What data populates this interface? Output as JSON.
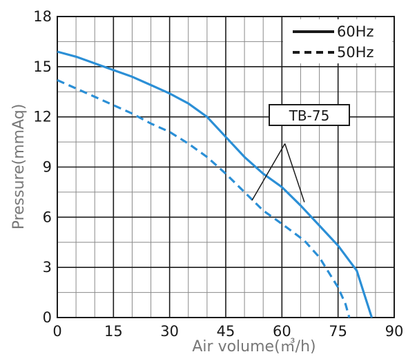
{
  "chart_data": {
    "type": "line",
    "xlabel": "Air volume(㎥/h)",
    "ylabel": "Pressure(mmAq)",
    "xlim": [
      0,
      90
    ],
    "ylim": [
      0,
      18
    ],
    "x_ticks": [
      "0",
      "15",
      "30",
      "45",
      "60",
      "75",
      "90"
    ],
    "y_ticks": [
      "0",
      "3",
      "6",
      "9",
      "12",
      "15",
      "18"
    ],
    "x_tick_values": [
      0,
      15,
      30,
      45,
      60,
      75,
      90
    ],
    "y_tick_values": [
      0,
      3,
      6,
      9,
      12,
      15,
      18
    ],
    "x_minor_step": 5,
    "y_minor_step": 1.5,
    "grid": true,
    "legend_position": "top-right",
    "series": [
      {
        "name": "60Hz",
        "style": "solid",
        "color": "#2b8fd6",
        "points": [
          [
            0,
            15.9
          ],
          [
            5,
            15.6
          ],
          [
            10,
            15.2
          ],
          [
            15,
            14.8
          ],
          [
            20,
            14.4
          ],
          [
            25,
            13.9
          ],
          [
            30,
            13.4
          ],
          [
            35,
            12.8
          ],
          [
            40,
            12.0
          ],
          [
            45,
            10.8
          ],
          [
            50,
            9.6
          ],
          [
            55,
            8.6
          ],
          [
            60,
            7.8
          ],
          [
            65,
            6.7
          ],
          [
            70,
            5.5
          ],
          [
            75,
            4.3
          ],
          [
            80,
            2.8
          ],
          [
            82,
            1.4
          ],
          [
            84,
            0
          ]
        ]
      },
      {
        "name": "50Hz",
        "style": "dashed",
        "color": "#2b8fd6",
        "points": [
          [
            0,
            14.2
          ],
          [
            5,
            13.7
          ],
          [
            10,
            13.2
          ],
          [
            15,
            12.7
          ],
          [
            20,
            12.2
          ],
          [
            25,
            11.6
          ],
          [
            30,
            11.1
          ],
          [
            35,
            10.4
          ],
          [
            40,
            9.6
          ],
          [
            45,
            8.6
          ],
          [
            50,
            7.5
          ],
          [
            55,
            6.4
          ],
          [
            60,
            5.6
          ],
          [
            66,
            4.6
          ],
          [
            70,
            3.6
          ],
          [
            75,
            1.8
          ],
          [
            77,
            0.8
          ],
          [
            78,
            0
          ]
        ]
      }
    ],
    "annotations": [
      {
        "text": "TB-75",
        "box_anchor": [
          60.8,
          10.4
        ],
        "targets": [
          [
            52,
            7.0
          ],
          [
            66,
            6.9
          ]
        ]
      }
    ]
  }
}
